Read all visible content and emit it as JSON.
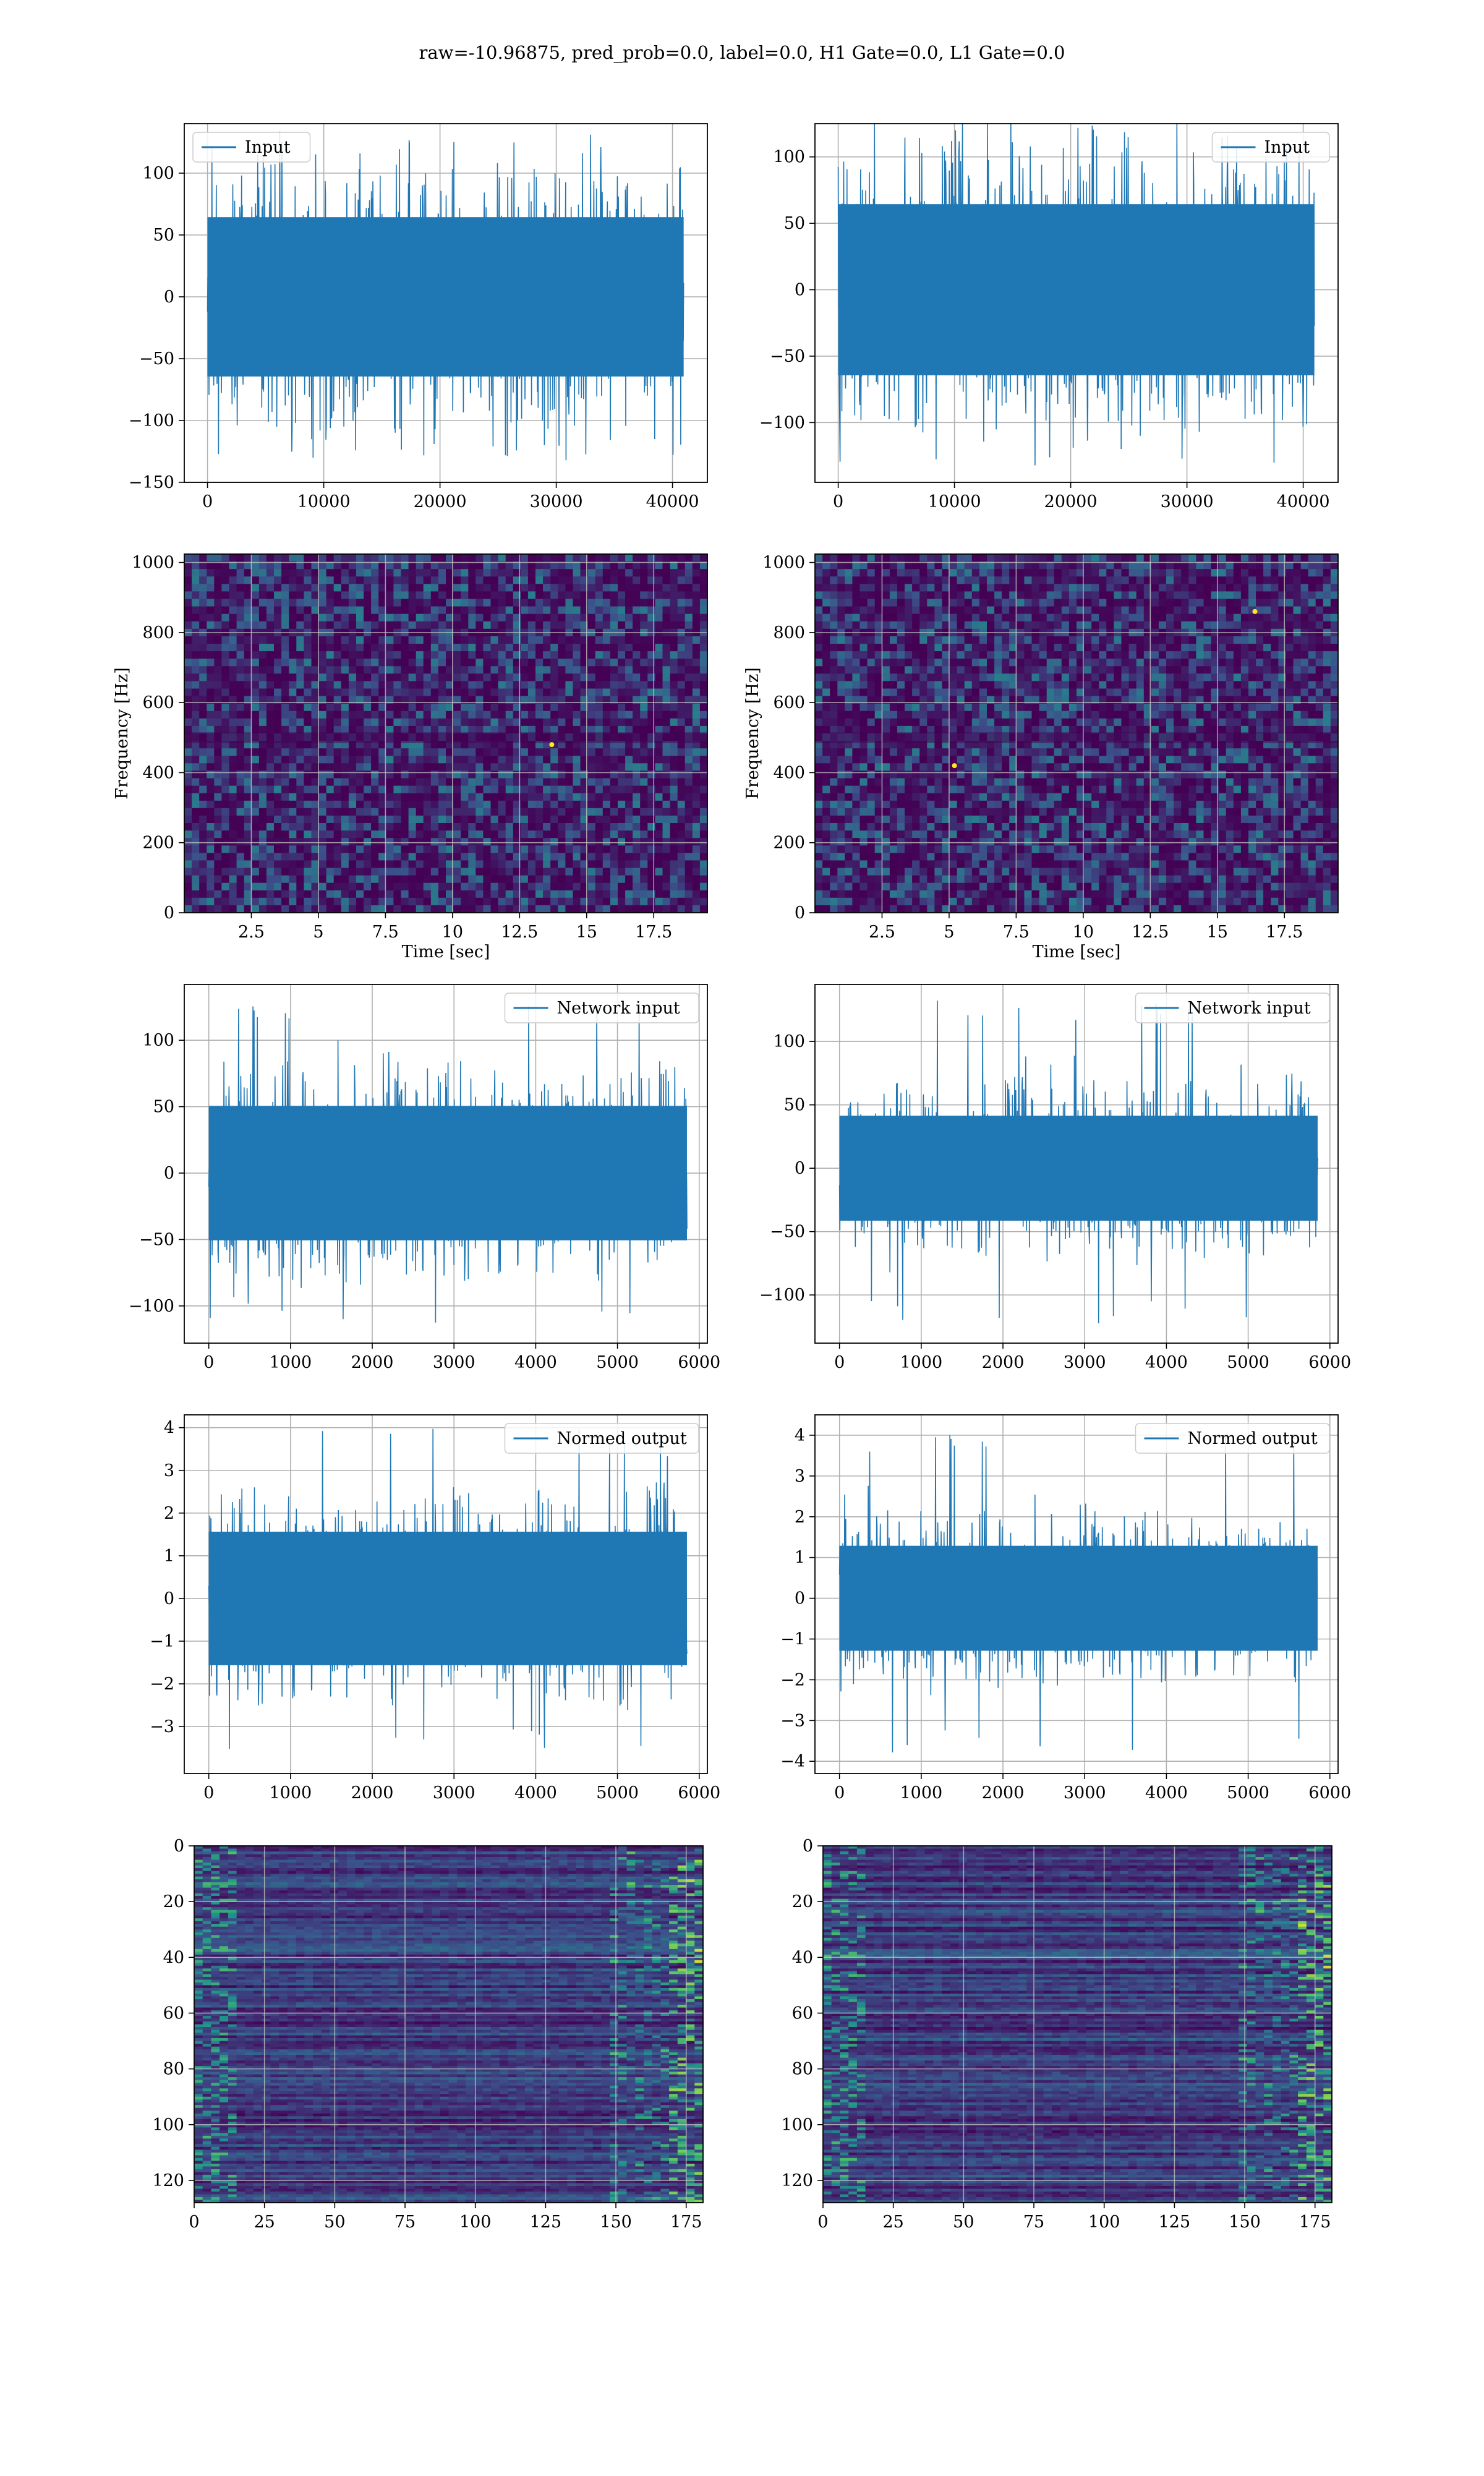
{
  "figure": {
    "title": "raw=-10.96875, pred_prob=0.0, label=0.0, H1 Gate=0.0, L1 Gate=0.0"
  },
  "colors": {
    "line": "#1f77b4",
    "grid": "#b0b0b0",
    "viridis_dark": "#440154",
    "viridis_mid": "#21918c",
    "viridis_bright": "#fde725"
  },
  "chart_data": [
    {
      "id": "input-left",
      "type": "line",
      "series": [
        {
          "name": "Input"
        }
      ],
      "xlim": [
        -2000,
        43000
      ],
      "ylim": [
        -150,
        140
      ],
      "xticks": [
        0,
        10000,
        20000,
        30000,
        40000
      ],
      "yticks": [
        -150,
        -100,
        -50,
        0,
        50,
        100
      ],
      "x_range": [
        0,
        40960
      ],
      "envelope": {
        "body": 70,
        "peak_max": 135,
        "trough_min": -135
      },
      "legend": "upper left",
      "grid": true
    },
    {
      "id": "input-right",
      "type": "line",
      "series": [
        {
          "name": "Input"
        }
      ],
      "xlim": [
        -2000,
        43000
      ],
      "ylim": [
        -145,
        125
      ],
      "xticks": [
        0,
        10000,
        20000,
        30000,
        40000
      ],
      "yticks": [
        -100,
        -50,
        0,
        50,
        100
      ],
      "x_range": [
        0,
        40960
      ],
      "envelope": {
        "body": 70,
        "peak_max": 128,
        "trough_min": -133
      },
      "legend": "upper right",
      "grid": true
    },
    {
      "id": "spec-left",
      "type": "heatmap",
      "xlabel": "Time [sec]",
      "ylabel": "Frequency [Hz]",
      "xlim": [
        0,
        19.5
      ],
      "ylim": [
        0,
        1024
      ],
      "xticks": [
        2.5,
        5.0,
        7.5,
        10.0,
        12.5,
        15.0,
        17.5
      ],
      "yticks": [
        0,
        200,
        400,
        600,
        800,
        1000
      ],
      "hot_spots": [
        {
          "t": 13.7,
          "f": 480
        }
      ],
      "grid": true
    },
    {
      "id": "spec-right",
      "type": "heatmap",
      "xlabel": "Time [sec]",
      "ylabel": "Frequency [Hz]",
      "xlim": [
        0,
        19.5
      ],
      "ylim": [
        0,
        1024
      ],
      "xticks": [
        2.5,
        5.0,
        7.5,
        10.0,
        12.5,
        15.0,
        17.5
      ],
      "yticks": [
        0,
        200,
        400,
        600,
        800,
        1000
      ],
      "hot_spots": [
        {
          "t": 16.4,
          "f": 860
        },
        {
          "t": 5.2,
          "f": 420
        }
      ],
      "grid": true
    },
    {
      "id": "netin-left",
      "type": "line",
      "series": [
        {
          "name": "Network input"
        }
      ],
      "xlim": [
        -300,
        6100
      ],
      "ylim": [
        -128,
        142
      ],
      "xticks": [
        0,
        1000,
        2000,
        3000,
        4000,
        5000,
        6000
      ],
      "yticks": [
        -100,
        -50,
        0,
        50,
        100
      ],
      "x_range": [
        0,
        5850
      ],
      "envelope": {
        "body": 55,
        "peak_max": 130,
        "trough_min": -115
      },
      "legend": "upper right",
      "grid": true
    },
    {
      "id": "netin-right",
      "type": "line",
      "series": [
        {
          "name": "Network input"
        }
      ],
      "xlim": [
        -300,
        6100
      ],
      "ylim": [
        -138,
        145
      ],
      "xticks": [
        0,
        1000,
        2000,
        3000,
        4000,
        5000,
        6000
      ],
      "yticks": [
        -100,
        -50,
        0,
        50,
        100
      ],
      "x_range": [
        0,
        5850
      ],
      "envelope": {
        "body": 45,
        "peak_max": 135,
        "trough_min": -123
      },
      "legend": "upper right",
      "grid": true
    },
    {
      "id": "normed-left",
      "type": "line",
      "series": [
        {
          "name": "Normed output"
        }
      ],
      "xlim": [
        -300,
        6100
      ],
      "ylim": [
        -4.1,
        4.3
      ],
      "xticks": [
        0,
        1000,
        2000,
        3000,
        4000,
        5000,
        6000
      ],
      "yticks": [
        -3,
        -2,
        -1,
        0,
        1,
        2,
        3,
        4
      ],
      "x_range": [
        0,
        5850
      ],
      "envelope": {
        "body": 1.7,
        "peak_max": 4.05,
        "trough_min": -3.6
      },
      "legend": "upper right",
      "grid": true
    },
    {
      "id": "normed-right",
      "type": "line",
      "series": [
        {
          "name": "Normed output"
        }
      ],
      "xlim": [
        -300,
        6100
      ],
      "ylim": [
        -4.3,
        4.5
      ],
      "xticks": [
        0,
        1000,
        2000,
        3000,
        4000,
        5000,
        6000
      ],
      "yticks": [
        -4,
        -3,
        -2,
        -1,
        0,
        1,
        2,
        3,
        4
      ],
      "x_range": [
        0,
        5850
      ],
      "envelope": {
        "body": 1.4,
        "peak_max": 4.15,
        "trough_min": -3.8
      },
      "legend": "upper right",
      "grid": true
    },
    {
      "id": "feat-left",
      "type": "heatmap",
      "xlim": [
        0,
        181
      ],
      "ylim": [
        128,
        0
      ],
      "xticks": [
        0,
        25,
        50,
        75,
        100,
        125,
        150,
        175
      ],
      "yticks": [
        0,
        20,
        40,
        60,
        80,
        100,
        120
      ],
      "grid": true
    },
    {
      "id": "feat-right",
      "type": "heatmap",
      "xlim": [
        0,
        181
      ],
      "ylim": [
        128,
        0
      ],
      "xticks": [
        0,
        25,
        50,
        75,
        100,
        125,
        150,
        175
      ],
      "yticks": [
        0,
        20,
        40,
        60,
        80,
        100,
        120
      ],
      "grid": true
    }
  ]
}
